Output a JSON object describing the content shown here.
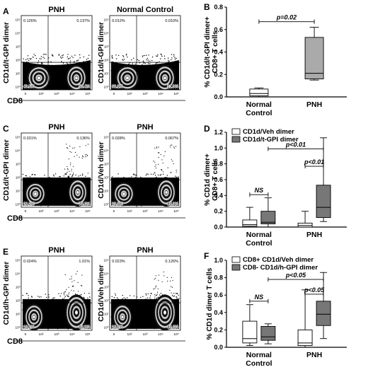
{
  "flow_panels": [
    {
      "letter": "A",
      "row": 0,
      "plots": [
        {
          "title": "PNH",
          "ylabel": "CD1d/t-GPI dimer",
          "xlabel": "CD8",
          "q": [
            "0.126%",
            "0.137%",
            "49.5%",
            "50.4%"
          ],
          "pattern": "ad"
        },
        {
          "title": "Normal Control",
          "ylabel": "CD1d/t-GPI dimer",
          "xlabel": "",
          "q": [
            "0.012%",
            "0.010%",
            "68.1%",
            "31.9%"
          ],
          "pattern": "ad"
        }
      ]
    },
    {
      "letter": "C",
      "row": 1,
      "plots": [
        {
          "title": "PNH",
          "ylabel": "CD1d/t-GPI dimer",
          "xlabel": "CD8",
          "q": [
            "0.031%",
            "0.136%",
            "20.2%",
            "79.6%"
          ],
          "pattern": "c"
        },
        {
          "title": "PNH",
          "ylabel": "CD1d/Veh dimer",
          "xlabel": "",
          "q": [
            "0.028%",
            "0.067%",
            "19.0%",
            "80.9%"
          ],
          "pattern": "c"
        }
      ]
    },
    {
      "letter": "E",
      "row": 2,
      "plots": [
        {
          "title": "PNH",
          "ylabel": "CD1d/h-GPI dimer",
          "xlabel": "CD8",
          "q": [
            "0.024%",
            "1.01%",
            "16.2%",
            "82.8%"
          ],
          "pattern": "e"
        },
        {
          "title": "PNH",
          "ylabel": "CD1d/Veh dimer",
          "xlabel": "",
          "q": [
            "0.023%",
            "0.126%",
            "16.2%",
            "83.6%"
          ],
          "pattern": "e"
        }
      ]
    }
  ],
  "axis_ticks": [
    "0",
    "10²",
    "10³",
    "10⁴",
    "10⁵"
  ],
  "axis_ticks_y": [
    "10⁰",
    "10¹",
    "10²",
    "10³",
    "10⁴",
    "10⁵"
  ],
  "chart_data": [
    {
      "letter": "B",
      "type": "box",
      "ylabel": "% CD1d/t-GPI dimer+ CD8+ T cells",
      "ylim": [
        0,
        0.8
      ],
      "yticks": [
        "0.0",
        "0.2",
        "0.4",
        "0.6",
        "0.8"
      ],
      "categories": [
        "Normal Control",
        "PNH"
      ],
      "boxes": [
        {
          "category": "Normal Control",
          "fill": "#ffffff",
          "min": 0.0,
          "q1": 0.01,
          "median": 0.03,
          "q3": 0.07,
          "max": 0.08
        },
        {
          "category": "PNH",
          "fill": "#aaaaaa",
          "min": 0.15,
          "q1": 0.16,
          "median": 0.21,
          "q3": 0.53,
          "max": 0.62
        }
      ],
      "annotations": [
        {
          "text": "p=0.02",
          "italic": true
        }
      ],
      "legend": []
    },
    {
      "letter": "D",
      "type": "box",
      "ylabel": "% CD1d dimer+ CD8+ T cells",
      "ylim": [
        0,
        1.2
      ],
      "yticks": [
        "0.0",
        "0.2",
        "0.4",
        "0.6",
        "0.8",
        "1.0",
        "1.2"
      ],
      "categories": [
        "Normal Control",
        "PNH"
      ],
      "boxes": [
        {
          "category": "Normal Control",
          "series": "CD1d/Veh dimer",
          "fill": "#ffffff",
          "min": 0.0,
          "q1": 0.01,
          "median": 0.03,
          "q3": 0.09,
          "max": 0.25
        },
        {
          "category": "Normal Control",
          "series": "CD1d/t-GPI dimer",
          "fill": "#777777",
          "min": 0.0,
          "q1": 0.04,
          "median": 0.06,
          "q3": 0.2,
          "max": 0.37
        },
        {
          "category": "PNH",
          "series": "CD1d/Veh dimer",
          "fill": "#ffffff",
          "min": 0.0,
          "q1": 0.0,
          "median": 0.02,
          "q3": 0.05,
          "max": 0.2
        },
        {
          "category": "PNH",
          "series": "CD1d/t-GPI dimer",
          "fill": "#777777",
          "min": 0.07,
          "q1": 0.12,
          "median": 0.25,
          "q3": 0.53,
          "max": 1.13
        }
      ],
      "annotations": [
        {
          "text": "NS",
          "italic": true
        },
        {
          "text": "p<0.01",
          "italic": true
        },
        {
          "text": "p<0.01",
          "italic": true
        }
      ],
      "legend": [
        {
          "name": "CD1d/Veh dimer",
          "fill": "#ffffff"
        },
        {
          "name": "CD1d/t-GPI dimer",
          "fill": "#777777"
        }
      ]
    },
    {
      "letter": "F",
      "type": "box",
      "ylabel": "% CD1d dimer  T cells",
      "ylim": [
        0,
        1.0
      ],
      "yticks": [
        "0.0",
        "0.2",
        "0.4",
        "0.6",
        "0.8",
        "1.0"
      ],
      "categories": [
        "Normal Control",
        "PNH"
      ],
      "boxes": [
        {
          "category": "Normal Control",
          "series": "CD8+ CD1d/Veh dimer",
          "fill": "#ffffff",
          "min": 0.02,
          "q1": 0.05,
          "median": 0.1,
          "q3": 0.3,
          "max": 0.49
        },
        {
          "category": "Normal Control",
          "series": "CD8- CD1d/h-GPI dimer",
          "fill": "#777777",
          "min": 0.04,
          "q1": 0.08,
          "median": 0.12,
          "q3": 0.24,
          "max": 0.27
        },
        {
          "category": "PNH",
          "series": "CD8+ CD1d/Veh dimer",
          "fill": "#ffffff",
          "min": 0.0,
          "q1": 0.02,
          "median": 0.05,
          "q3": 0.2,
          "max": 0.66
        },
        {
          "category": "PNH",
          "series": "CD8- CD1d/h-GPI dimer",
          "fill": "#777777",
          "min": 0.1,
          "q1": 0.25,
          "median": 0.38,
          "q3": 0.53,
          "max": 0.86
        }
      ],
      "annotations": [
        {
          "text": "NS",
          "italic": true
        },
        {
          "text": "p<0.05",
          "italic": true
        },
        {
          "text": "p<0.05",
          "italic": true
        }
      ],
      "legend": [
        {
          "name": "CD8+ CD1d/Veh dimer",
          "fill": "#ffffff"
        },
        {
          "name": "CD8-  CD1d/h-GPI dimer",
          "fill": "#777777"
        }
      ]
    }
  ]
}
